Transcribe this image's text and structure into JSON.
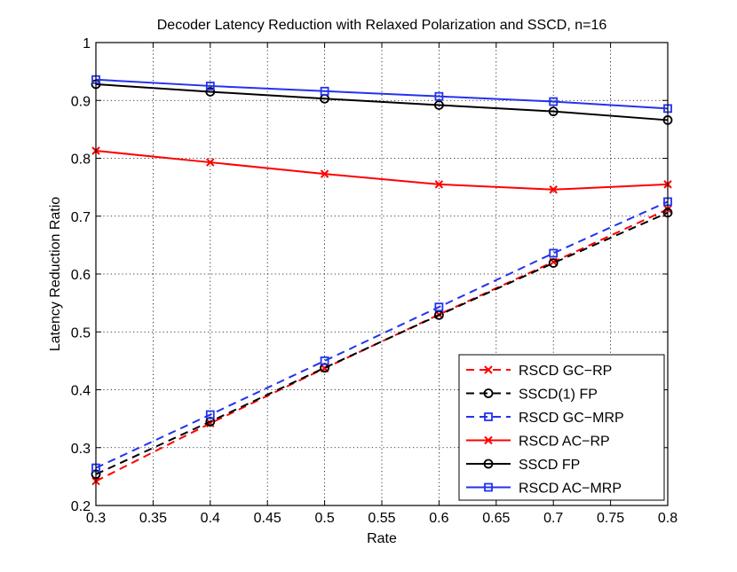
{
  "chart_data": {
    "type": "line",
    "title": "Decoder Latency Reduction with Relaxed Polarization and SSCD, n=16",
    "xlabel": "Rate",
    "ylabel": "Latency Reduction Ratio",
    "xlim": [
      0.3,
      0.8
    ],
    "ylim": [
      0.2,
      1.0
    ],
    "xticks": [
      0.3,
      0.35,
      0.4,
      0.45,
      0.5,
      0.55,
      0.6,
      0.65,
      0.7,
      0.75,
      0.8
    ],
    "xtick_labels": [
      "0.3",
      "0.35",
      "0.4",
      "0.45",
      "0.5",
      "0.55",
      "0.6",
      "0.65",
      "0.7",
      "0.75",
      "0.8"
    ],
    "yticks": [
      0.2,
      0.3,
      0.4,
      0.5,
      0.6,
      0.7,
      0.8,
      0.9,
      1.0
    ],
    "ytick_labels": [
      "0.2",
      "0.3",
      "0.4",
      "0.5",
      "0.6",
      "0.7",
      "0.8",
      "0.9",
      "1"
    ],
    "grid": true,
    "legend_position": "bottom-right",
    "x": [
      0.3,
      0.4,
      0.5,
      0.6,
      0.7,
      0.8
    ],
    "series": [
      {
        "name": "RSCD GC−RP",
        "color": "#ff0000",
        "dash": "dashed",
        "marker": "x",
        "values": [
          0.242,
          0.342,
          0.437,
          0.53,
          0.621,
          0.712
        ]
      },
      {
        "name": "SSCD(1) FP",
        "color": "#000000",
        "dash": "dashed",
        "marker": "circle",
        "values": [
          0.254,
          0.345,
          0.438,
          0.529,
          0.619,
          0.706
        ]
      },
      {
        "name": "RSCD GC−MRP",
        "color": "#2233ee",
        "dash": "dashed",
        "marker": "square",
        "values": [
          0.265,
          0.357,
          0.45,
          0.543,
          0.636,
          0.725
        ]
      },
      {
        "name": "RSCD AC−RP",
        "color": "#ff0000",
        "dash": "solid",
        "marker": "x",
        "values": [
          0.813,
          0.793,
          0.773,
          0.755,
          0.746,
          0.755
        ]
      },
      {
        "name": "SSCD FP",
        "color": "#000000",
        "dash": "solid",
        "marker": "circle",
        "values": [
          0.928,
          0.915,
          0.903,
          0.892,
          0.881,
          0.866
        ]
      },
      {
        "name": "RSCD AC−MRP",
        "color": "#2233ee",
        "dash": "solid",
        "marker": "square",
        "values": [
          0.936,
          0.925,
          0.916,
          0.907,
          0.898,
          0.886
        ]
      }
    ]
  }
}
